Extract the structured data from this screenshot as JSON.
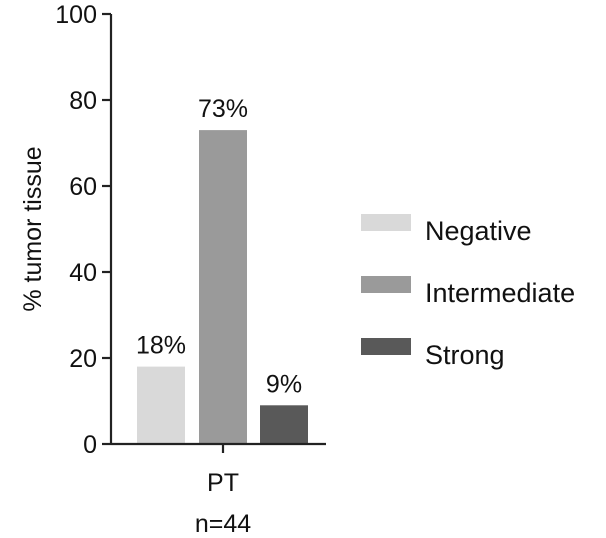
{
  "chart_data": {
    "type": "bar",
    "ylabel": "% tumor tissue",
    "ylim": [
      0,
      100
    ],
    "yticks": [
      0,
      20,
      40,
      60,
      80,
      100
    ],
    "category": "PT",
    "category_note": "n=44",
    "legend_position": "right",
    "series": [
      {
        "name": "Negative",
        "value": 18,
        "label": "18%",
        "color": "#d9d9d9"
      },
      {
        "name": "Intermediate",
        "value": 73,
        "label": "73%",
        "color": "#9a9a9a"
      },
      {
        "name": "Strong",
        "value": 9,
        "label": "9%",
        "color": "#595959"
      }
    ]
  }
}
